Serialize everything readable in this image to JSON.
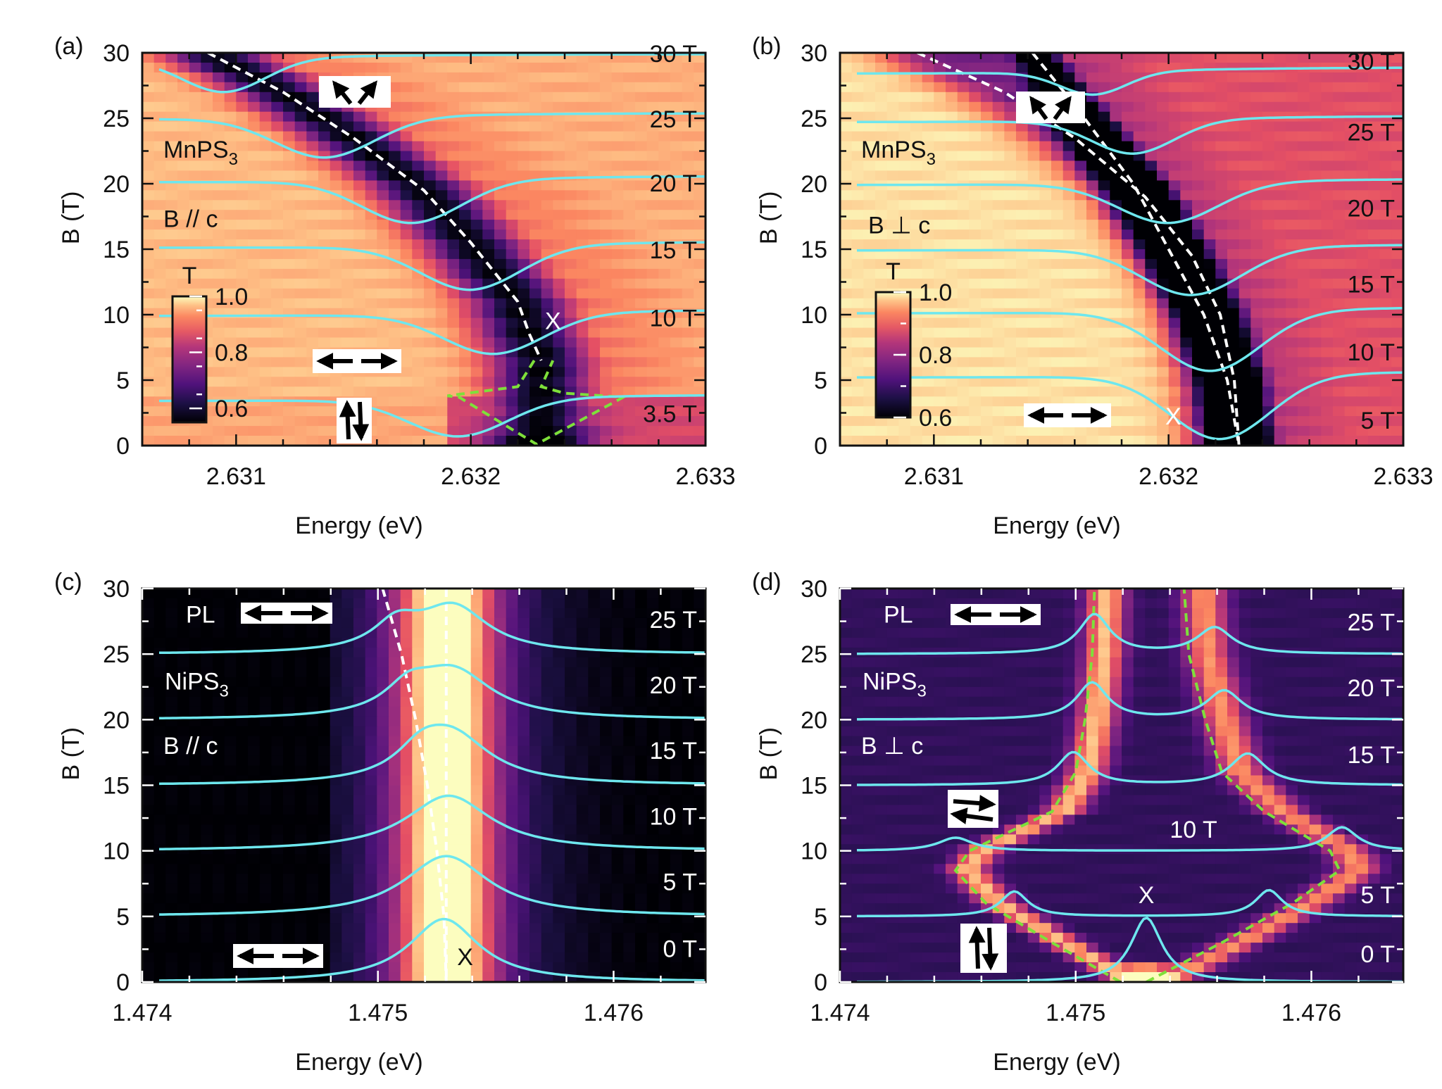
{
  "chart_data": [
    {
      "panel_label": "(a)",
      "type": "heatmap",
      "colormap": "magma",
      "background_style": "transmission",
      "material": "MnPS3",
      "material_main": "MnPS",
      "material_sub": "3",
      "field_orientation": "B // c",
      "xlabel": "Energy (eV)",
      "ylabel": "B (T)",
      "xlim": [
        2.6306,
        2.633
      ],
      "ylim": [
        0,
        30
      ],
      "xticks": [
        2.631,
        2.632,
        2.633
      ],
      "xtick_labels": [
        "2.631",
        "2.632",
        "2.633"
      ],
      "yticks": [
        0,
        5,
        10,
        15,
        20,
        25,
        30
      ],
      "ytick_labels": [
        "0",
        "5",
        "10",
        "15",
        "20",
        "25",
        "30"
      ],
      "colorbar": {
        "title": "T",
        "ticks": [
          "1.0",
          "0.8",
          "0.6"
        ],
        "range": [
          0.55,
          1.0
        ]
      },
      "exciton_label": "X",
      "field_labels": [
        "30 T",
        "25 T",
        "20 T",
        "15 T",
        "10 T",
        "3.5 T"
      ],
      "spectra": [
        {
          "label": "30 T",
          "baseline": 29.5,
          "dip_energy": 2.63095,
          "dip_depth": 2.5,
          "dip_width": 0.00025
        },
        {
          "label": "25 T",
          "baseline": 25.0,
          "dip_energy": 2.63138,
          "dip_depth": 3.0,
          "dip_width": 0.0003
        },
        {
          "label": "20 T",
          "baseline": 20.2,
          "dip_energy": 2.63175,
          "dip_depth": 3.2,
          "dip_width": 0.0003
        },
        {
          "label": "15 T",
          "baseline": 15.2,
          "dip_energy": 2.632,
          "dip_depth": 3.3,
          "dip_width": 0.0003
        },
        {
          "label": "10 T",
          "baseline": 10.0,
          "dip_energy": 2.6321,
          "dip_depth": 3.0,
          "dip_width": 0.0003
        },
        {
          "label": "3.5 T",
          "baseline": 3.5,
          "dip_energy": 2.63195,
          "dip_depth": 2.8,
          "dip_width": 0.0003
        }
      ],
      "dashed_fit_white": [
        [
          2.63088,
          30
        ],
        [
          2.6312,
          27
        ],
        [
          2.6315,
          23.5
        ],
        [
          2.6318,
          19.5
        ],
        [
          2.632,
          15.5
        ],
        [
          2.6322,
          11
        ],
        [
          2.63225,
          8.5
        ],
        [
          2.6323,
          6.5
        ]
      ],
      "dashed_green_region": [
        [
          2.63227,
          6.5
        ],
        [
          2.6322,
          4.5
        ],
        [
          2.6319,
          3.8
        ],
        [
          2.63195,
          3.7
        ],
        [
          2.63228,
          0.1
        ],
        [
          2.63265,
          3.7
        ],
        [
          2.6324,
          4.0
        ],
        [
          2.6323,
          4.5
        ],
        [
          2.63235,
          6.5
        ]
      ],
      "spin_annotations": [
        "canted-arrows",
        "in-plane-arrows",
        "up-down-arrows"
      ]
    },
    {
      "panel_label": "(b)",
      "type": "heatmap",
      "colormap": "magma",
      "material": "MnPS3",
      "material_main": "MnPS",
      "material_sub": "3",
      "field_orientation": "B ⊥ c",
      "xlabel": "Energy (eV)",
      "ylabel": "B (T)",
      "xlim": [
        2.6306,
        2.633
      ],
      "ylim": [
        0,
        30
      ],
      "xticks": [
        2.631,
        2.632,
        2.633
      ],
      "xtick_labels": [
        "2.631",
        "2.632",
        "2.633"
      ],
      "yticks": [
        0,
        5,
        10,
        15,
        20,
        25,
        30
      ],
      "ytick_labels": [
        "0",
        "5",
        "10",
        "15",
        "20",
        "25",
        "30"
      ],
      "colorbar": {
        "title": "T",
        "ticks": [
          "1.0",
          "0.8",
          "0.6"
        ],
        "range": [
          0.6,
          1.0
        ]
      },
      "exciton_label": "X",
      "field_labels": [
        "30 T",
        "25 T",
        "20 T",
        "15 T",
        "10 T",
        "5 T"
      ],
      "spectra": [
        {
          "label": "30 T",
          "baseline": 28.5,
          "dip_energy": 2.63168,
          "dip_depth": 1.7,
          "dip_width": 0.0002
        },
        {
          "label": "25 T",
          "baseline": 24.8,
          "dip_energy": 2.63185,
          "dip_depth": 2.5,
          "dip_width": 0.00025
        },
        {
          "label": "20 T",
          "baseline": 20.0,
          "dip_energy": 2.632,
          "dip_depth": 3.0,
          "dip_width": 0.0003
        },
        {
          "label": "15 T",
          "baseline": 15.0,
          "dip_energy": 2.6321,
          "dip_depth": 3.5,
          "dip_width": 0.0003
        },
        {
          "label": "10 T",
          "baseline": 10.2,
          "dip_energy": 2.63218,
          "dip_depth": 4.5,
          "dip_width": 0.0003
        },
        {
          "label": "5 T",
          "baseline": 5.3,
          "dip_energy": 2.63222,
          "dip_depth": 4.8,
          "dip_width": 0.0003
        }
      ],
      "dashed_fit_white_1": [
        [
          2.63093,
          30
        ],
        [
          2.6313,
          27
        ],
        [
          2.6316,
          23.5
        ],
        [
          2.6319,
          19
        ],
        [
          2.6321,
          14.5
        ],
        [
          2.63222,
          10
        ],
        [
          2.63228,
          5
        ],
        [
          2.6323,
          0
        ]
      ],
      "dashed_fit_white_2": [
        [
          2.63142,
          30
        ],
        [
          2.6316,
          26
        ],
        [
          2.63185,
          20
        ],
        [
          2.632,
          15
        ],
        [
          2.63215,
          10
        ],
        [
          2.63225,
          5
        ],
        [
          2.6323,
          0
        ]
      ],
      "spin_annotations": [
        "canted-arrows",
        "in-plane-arrows"
      ]
    },
    {
      "panel_label": "(c)",
      "type": "heatmap",
      "colormap": "magma",
      "measurement": "PL",
      "material": "NiPS3",
      "material_main": "NiPS",
      "material_sub": "3",
      "field_orientation": "B // c",
      "xlabel": "Energy (eV)",
      "ylabel": "B (T)",
      "xlim": [
        1.474,
        1.47639
      ],
      "ylim": [
        0,
        30
      ],
      "xticks": [
        1.474,
        1.475,
        1.476
      ],
      "xtick_labels": [
        "1.474",
        "1.475",
        "1.476"
      ],
      "yticks": [
        0,
        5,
        10,
        15,
        20,
        25,
        30
      ],
      "ytick_labels": [
        "0",
        "5",
        "10",
        "15",
        "20",
        "25",
        "30"
      ],
      "exciton_label": "X",
      "field_labels": [
        "25 T",
        "20 T",
        "15 T",
        "10 T",
        "5 T",
        "0 T"
      ],
      "spectra": [
        {
          "label": "25 T",
          "baseline": 25.0,
          "peaks": [
            {
              "energy": 1.47532,
              "height": 3.5,
              "width": 0.00018
            },
            {
              "energy": 1.47508,
              "height": 2.0,
              "width": 0.00012
            }
          ]
        },
        {
          "label": "20 T",
          "baseline": 20.0,
          "peaks": [
            {
              "energy": 1.47532,
              "height": 3.6,
              "width": 0.0002
            },
            {
              "energy": 1.47513,
              "height": 1.8,
              "width": 0.00012
            }
          ]
        },
        {
          "label": "15 T",
          "baseline": 15.0,
          "peaks": [
            {
              "energy": 1.47531,
              "height": 3.8,
              "width": 0.0002
            },
            {
              "energy": 1.47518,
              "height": 1.5,
              "width": 0.00012
            }
          ]
        },
        {
          "label": "10 T",
          "baseline": 10.0,
          "peaks": [
            {
              "energy": 1.4753,
              "height": 4.2,
              "width": 0.00022
            }
          ]
        },
        {
          "label": "5 T",
          "baseline": 5.0,
          "peaks": [
            {
              "energy": 1.47529,
              "height": 4.6,
              "width": 0.00022
            }
          ]
        },
        {
          "label": "0 T",
          "baseline": 0.0,
          "peaks": [
            {
              "energy": 1.47528,
              "height": 4.8,
              "width": 0.00018
            }
          ]
        }
      ],
      "dashed_fit_white_1": [
        [
          1.47502,
          30
        ],
        [
          1.4751,
          25
        ],
        [
          1.47516,
          20
        ],
        [
          1.47521,
          15
        ],
        [
          1.47525,
          10
        ],
        [
          1.47528,
          5
        ],
        [
          1.47529,
          0
        ]
      ],
      "dashed_fit_white_2": [
        [
          1.47529,
          30
        ],
        [
          1.47529,
          0
        ]
      ],
      "spin_annotations": [
        "in-plane-arrows",
        "in-plane-arrows"
      ]
    },
    {
      "panel_label": "(d)",
      "type": "heatmap",
      "colormap": "magma",
      "measurement": "PL",
      "material": "NiPS3",
      "material_main": "NiPS",
      "material_sub": "3",
      "field_orientation": "B ⊥ c",
      "xlabel": "Energy (eV)",
      "ylabel": "B (T)",
      "xlim": [
        1.474,
        1.47639
      ],
      "ylim": [
        0,
        30
      ],
      "xticks": [
        1.474,
        1.475,
        1.476
      ],
      "xtick_labels": [
        "1.474",
        "1.475",
        "1.476"
      ],
      "yticks": [
        0,
        5,
        10,
        15,
        20,
        25,
        30
      ],
      "ytick_labels": [
        "0",
        "5",
        "10",
        "15",
        "20",
        "25",
        "30"
      ],
      "exciton_label": "X",
      "field_labels": [
        "25 T",
        "20 T",
        "15 T",
        "10 T",
        "5 T",
        "0 T"
      ],
      "spectra": [
        {
          "label": "25 T",
          "baseline": 25.0,
          "peaks": [
            {
              "energy": 1.47508,
              "height": 3.0,
              "width": 8e-05
            },
            {
              "energy": 1.47559,
              "height": 2.0,
              "width": 9e-05
            }
          ]
        },
        {
          "label": "20 T",
          "baseline": 20.0,
          "peaks": [
            {
              "energy": 1.47507,
              "height": 2.8,
              "width": 8e-05
            },
            {
              "energy": 1.47563,
              "height": 2.2,
              "width": 9e-05
            }
          ]
        },
        {
          "label": "15 T",
          "baseline": 15.0,
          "peaks": [
            {
              "energy": 1.47499,
              "height": 2.5,
              "width": 8e-05
            },
            {
              "energy": 1.47573,
              "height": 2.4,
              "width": 9e-05
            }
          ]
        },
        {
          "label": "10 T",
          "baseline": 10.0,
          "peaks": [
            {
              "energy": 1.47449,
              "height": 1.0,
              "width": 9e-05
            },
            {
              "energy": 1.47613,
              "height": 1.8,
              "width": 8e-05
            }
          ]
        },
        {
          "label": "5 T",
          "baseline": 5.0,
          "peaks": [
            {
              "energy": 1.47474,
              "height": 1.9,
              "width": 7e-05
            },
            {
              "energy": 1.47582,
              "height": 2.0,
              "width": 7e-05
            }
          ]
        },
        {
          "label": "0 T",
          "baseline": 0.0,
          "peaks": [
            {
              "energy": 1.4753,
              "height": 4.9,
              "width": 8e-05
            }
          ]
        }
      ],
      "dashed_fit_green_left": [
        [
          1.47519,
          0
        ],
        [
          1.4749,
          3
        ],
        [
          1.47462,
          6
        ],
        [
          1.47449,
          8.5
        ],
        [
          1.47455,
          10
        ],
        [
          1.4749,
          13
        ],
        [
          1.475,
          16
        ],
        [
          1.47504,
          20
        ],
        [
          1.47507,
          25
        ],
        [
          1.47508,
          30
        ]
      ],
      "dashed_fit_green_right": [
        [
          1.4753,
          0
        ],
        [
          1.47562,
          3
        ],
        [
          1.47592,
          6
        ],
        [
          1.47612,
          8.5
        ],
        [
          1.47608,
          10
        ],
        [
          1.4758,
          13
        ],
        [
          1.47562,
          16
        ],
        [
          1.47555,
          20
        ],
        [
          1.47548,
          25
        ],
        [
          1.47546,
          30
        ]
      ],
      "spin_annotations": [
        "in-plane-arrows",
        "antiparallel-horizontal-arrows",
        "up-down-arrows"
      ]
    }
  ]
}
